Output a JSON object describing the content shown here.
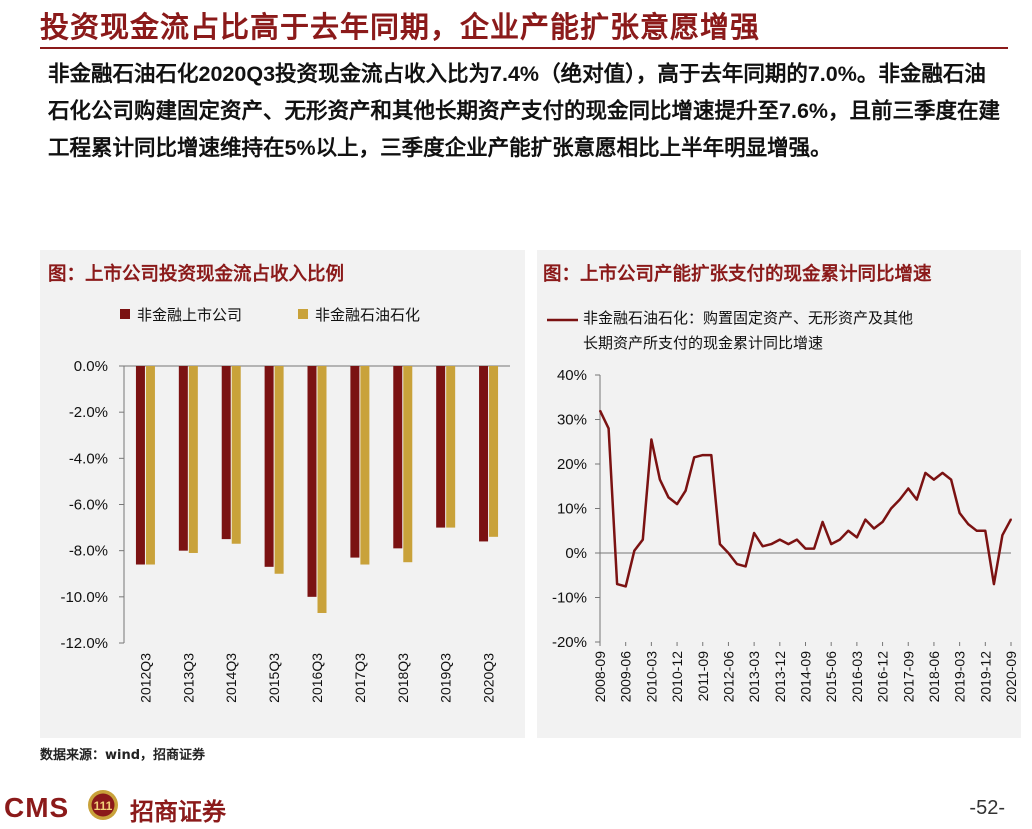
{
  "header": {
    "title": "投资现金流占比高于去年同期，企业产能扩张意愿增强",
    "body_parts": [
      "非金融石油石化",
      "2020Q3",
      "投资现金流占收入比为",
      "7.4%",
      "（绝对值），高于去年同期的",
      "7.0%",
      "。非金融石油石化公司购建固定资产、无形资产和其他长期资产支付的现金同比增速提升至",
      "7.6%",
      "，且前三季度在建工程累计同比增速维持在",
      "5%",
      "以上，三季度企业产能扩张意愿相比上半年明显增强。"
    ]
  },
  "left_panel": {
    "title": "图：上市公司投资现金流占收入比例"
  },
  "right_panel": {
    "title": "图：上市公司产能扩张支付的现金累计同比增速"
  },
  "chart_data": [
    {
      "type": "bar",
      "title": "图：上市公司投资现金流占收入比例",
      "categories": [
        "2012Q3",
        "2013Q3",
        "2014Q3",
        "2015Q3",
        "2016Q3",
        "2017Q3",
        "2018Q3",
        "2019Q3",
        "2020Q3"
      ],
      "series": [
        {
          "name": "非金融上市公司",
          "color": "#7b1212",
          "values": [
            -8.6,
            -8.0,
            -7.5,
            -8.7,
            -10.0,
            -8.3,
            -7.9,
            -7.0,
            -7.6
          ]
        },
        {
          "name": "非金融石油石化",
          "color": "#c9a23a",
          "values": [
            -8.6,
            -8.1,
            -7.7,
            -9.0,
            -10.7,
            -8.6,
            -8.5,
            -7.0,
            -7.4
          ]
        }
      ],
      "ylim": [
        -12,
        0
      ],
      "yticks": [
        "0.0%",
        "-2.0%",
        "-4.0%",
        "-6.0%",
        "-8.0%",
        "-10.0%",
        "-12.0%"
      ],
      "ytick_values": [
        0,
        -2,
        -4,
        -6,
        -8,
        -10,
        -12
      ],
      "legend_position": "top",
      "grid": false
    },
    {
      "type": "line",
      "title": "图：上市公司产能扩张支付的现金累计同比增速",
      "series": [
        {
          "name": "非金融石油石化：购置固定资产、无形资产及其他长期资产所支付的现金累计同比增速",
          "legend_lines": [
            "非金融石油石化：购置固定资产、无形资产及其他",
            "长期资产所支付的现金累计同比增速"
          ],
          "color": "#7b1212",
          "x": [
            "2008-09",
            "2008-12",
            "2009-03",
            "2009-06",
            "2009-09",
            "2009-12",
            "2010-03",
            "2010-06",
            "2010-09",
            "2010-12",
            "2011-03",
            "2011-06",
            "2011-09",
            "2011-12",
            "2012-03",
            "2012-06",
            "2012-09",
            "2012-12",
            "2013-03",
            "2013-06",
            "2013-09",
            "2013-12",
            "2014-03",
            "2014-06",
            "2014-09",
            "2014-12",
            "2015-03",
            "2015-06",
            "2015-09",
            "2015-12",
            "2016-03",
            "2016-06",
            "2016-09",
            "2016-12",
            "2017-03",
            "2017-06",
            "2017-09",
            "2017-12",
            "2018-03",
            "2018-06",
            "2018-09",
            "2018-12",
            "2019-03",
            "2019-06",
            "2019-09",
            "2019-12",
            "2020-03",
            "2020-06",
            "2020-09"
          ],
          "y": [
            32,
            28,
            -7,
            -7.5,
            0.5,
            3,
            25.5,
            16.5,
            12.5,
            11,
            14,
            21.5,
            22,
            22,
            2,
            0,
            -2.5,
            -3,
            4.5,
            1.5,
            2,
            3,
            2,
            3,
            1,
            1,
            7,
            2,
            3,
            5,
            3.5,
            7.5,
            5.5,
            7,
            10,
            12,
            14.5,
            12,
            18,
            16.5,
            18,
            16.5,
            9,
            6.5,
            5,
            5,
            -7,
            4,
            7.6
          ]
        }
      ],
      "xticks": [
        "2008-09",
        "2009-06",
        "2010-03",
        "2010-12",
        "2011-09",
        "2012-06",
        "2013-03",
        "2013-12",
        "2014-09",
        "2015-06",
        "2016-03",
        "2016-12",
        "2017-09",
        "2018-06",
        "2019-03",
        "2019-12",
        "2020-09"
      ],
      "ylim": [
        -20,
        40
      ],
      "yticks": [
        "40%",
        "30%",
        "20%",
        "10%",
        "0%",
        "-10%",
        "-20%"
      ],
      "ytick_values": [
        40,
        30,
        20,
        10,
        0,
        -10,
        -20
      ],
      "legend_position": "top",
      "grid": false
    }
  ],
  "footer": {
    "source": "数据来源：wind，招商证券",
    "logo_latin": "CMS",
    "logo_mark": "111",
    "logo_cn": "招商证券",
    "page": "-52-"
  }
}
